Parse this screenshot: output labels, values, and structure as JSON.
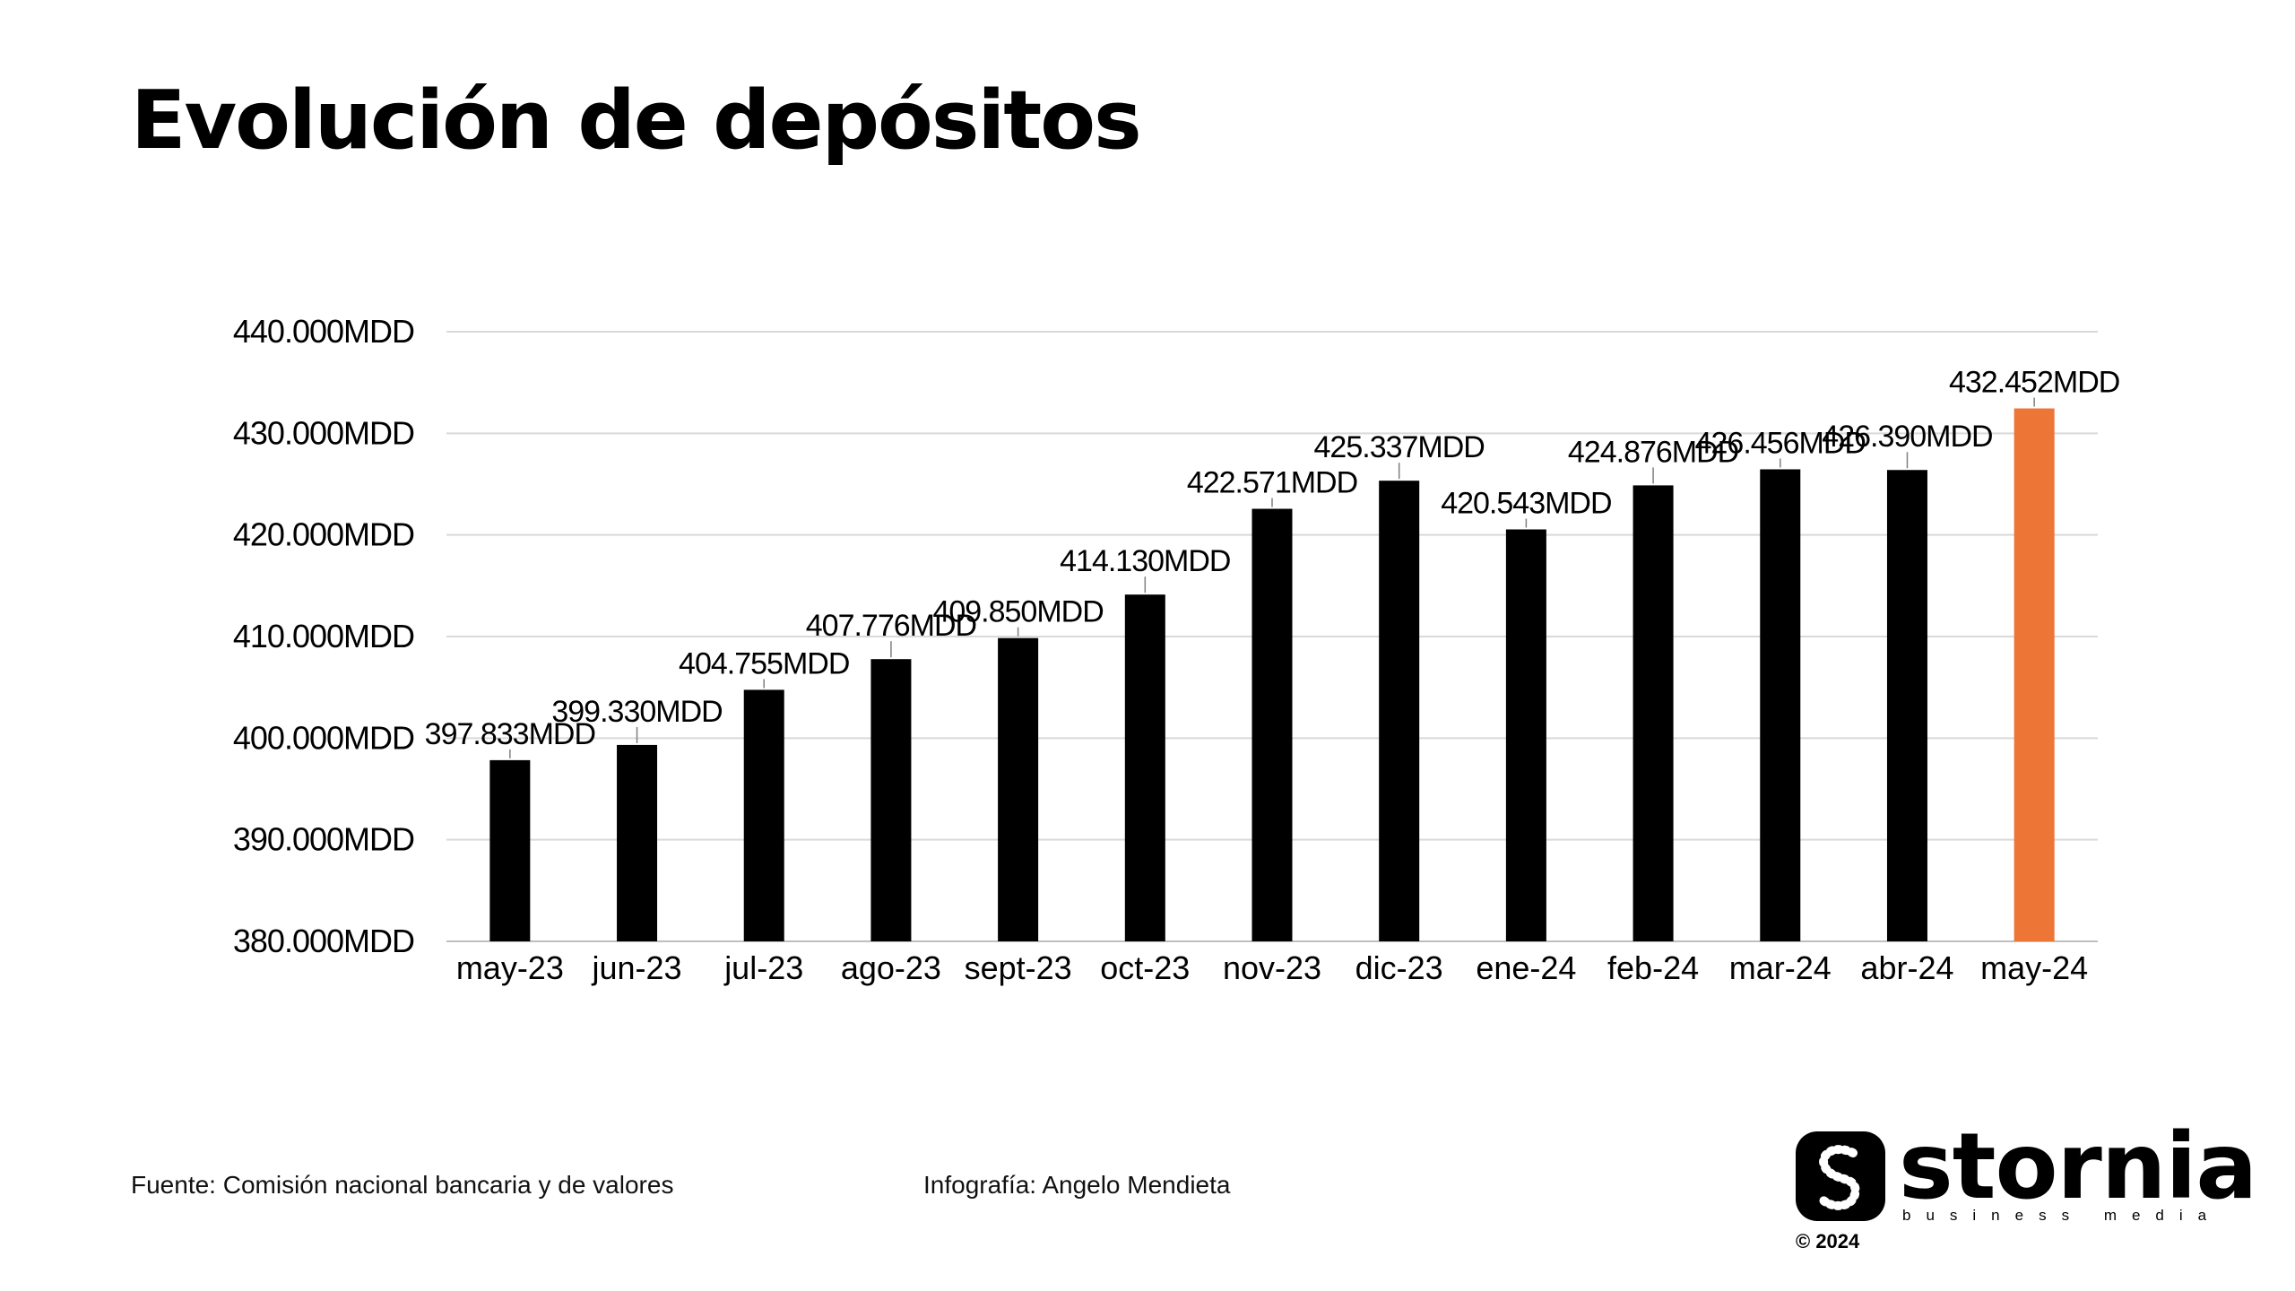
{
  "title": "Evolución de depósitos",
  "chart_data": {
    "type": "bar",
    "categories": [
      "may-23",
      "jun-23",
      "jul-23",
      "ago-23",
      "sept-23",
      "oct-23",
      "nov-23",
      "dic-23",
      "ene-24",
      "feb-24",
      "mar-24",
      "abr-24",
      "may-24"
    ],
    "values": [
      397833,
      399330,
      404755,
      407776,
      409850,
      414130,
      422571,
      425337,
      420543,
      424876,
      426456,
      426390,
      432452
    ],
    "data_labels": [
      "397.833MDD",
      "399.330MDD",
      "404.755MDD",
      "407.776MDD",
      "409.850MDD",
      "414.130MDD",
      "422.571MDD",
      "425.337MDD",
      "420.543MDD",
      "424.876MDD",
      "426.456MDD",
      "426.390MDD",
      "432.452MDD"
    ],
    "y_ticks": [
      380000,
      390000,
      400000,
      410000,
      420000,
      430000,
      440000
    ],
    "y_tick_labels": [
      "380.000MDD",
      "390.000MDD",
      "400.000MDD",
      "410.000MDD",
      "420.000MDD",
      "430.000MDD",
      "440.000MDD"
    ],
    "ylim": [
      380000,
      440000
    ],
    "grid": true,
    "highlight_index": 12,
    "colors": {
      "bar": "#000000",
      "highlight": "#ED7535",
      "grid": "#d9d9d9"
    }
  },
  "footer": {
    "source": "Fuente: Comisión nacional bancaria y de valores",
    "credit": "Infografía: Angelo Mendieta"
  },
  "logo": {
    "name": "stornia",
    "tagline": "business media",
    "copyright": "© 2024"
  }
}
